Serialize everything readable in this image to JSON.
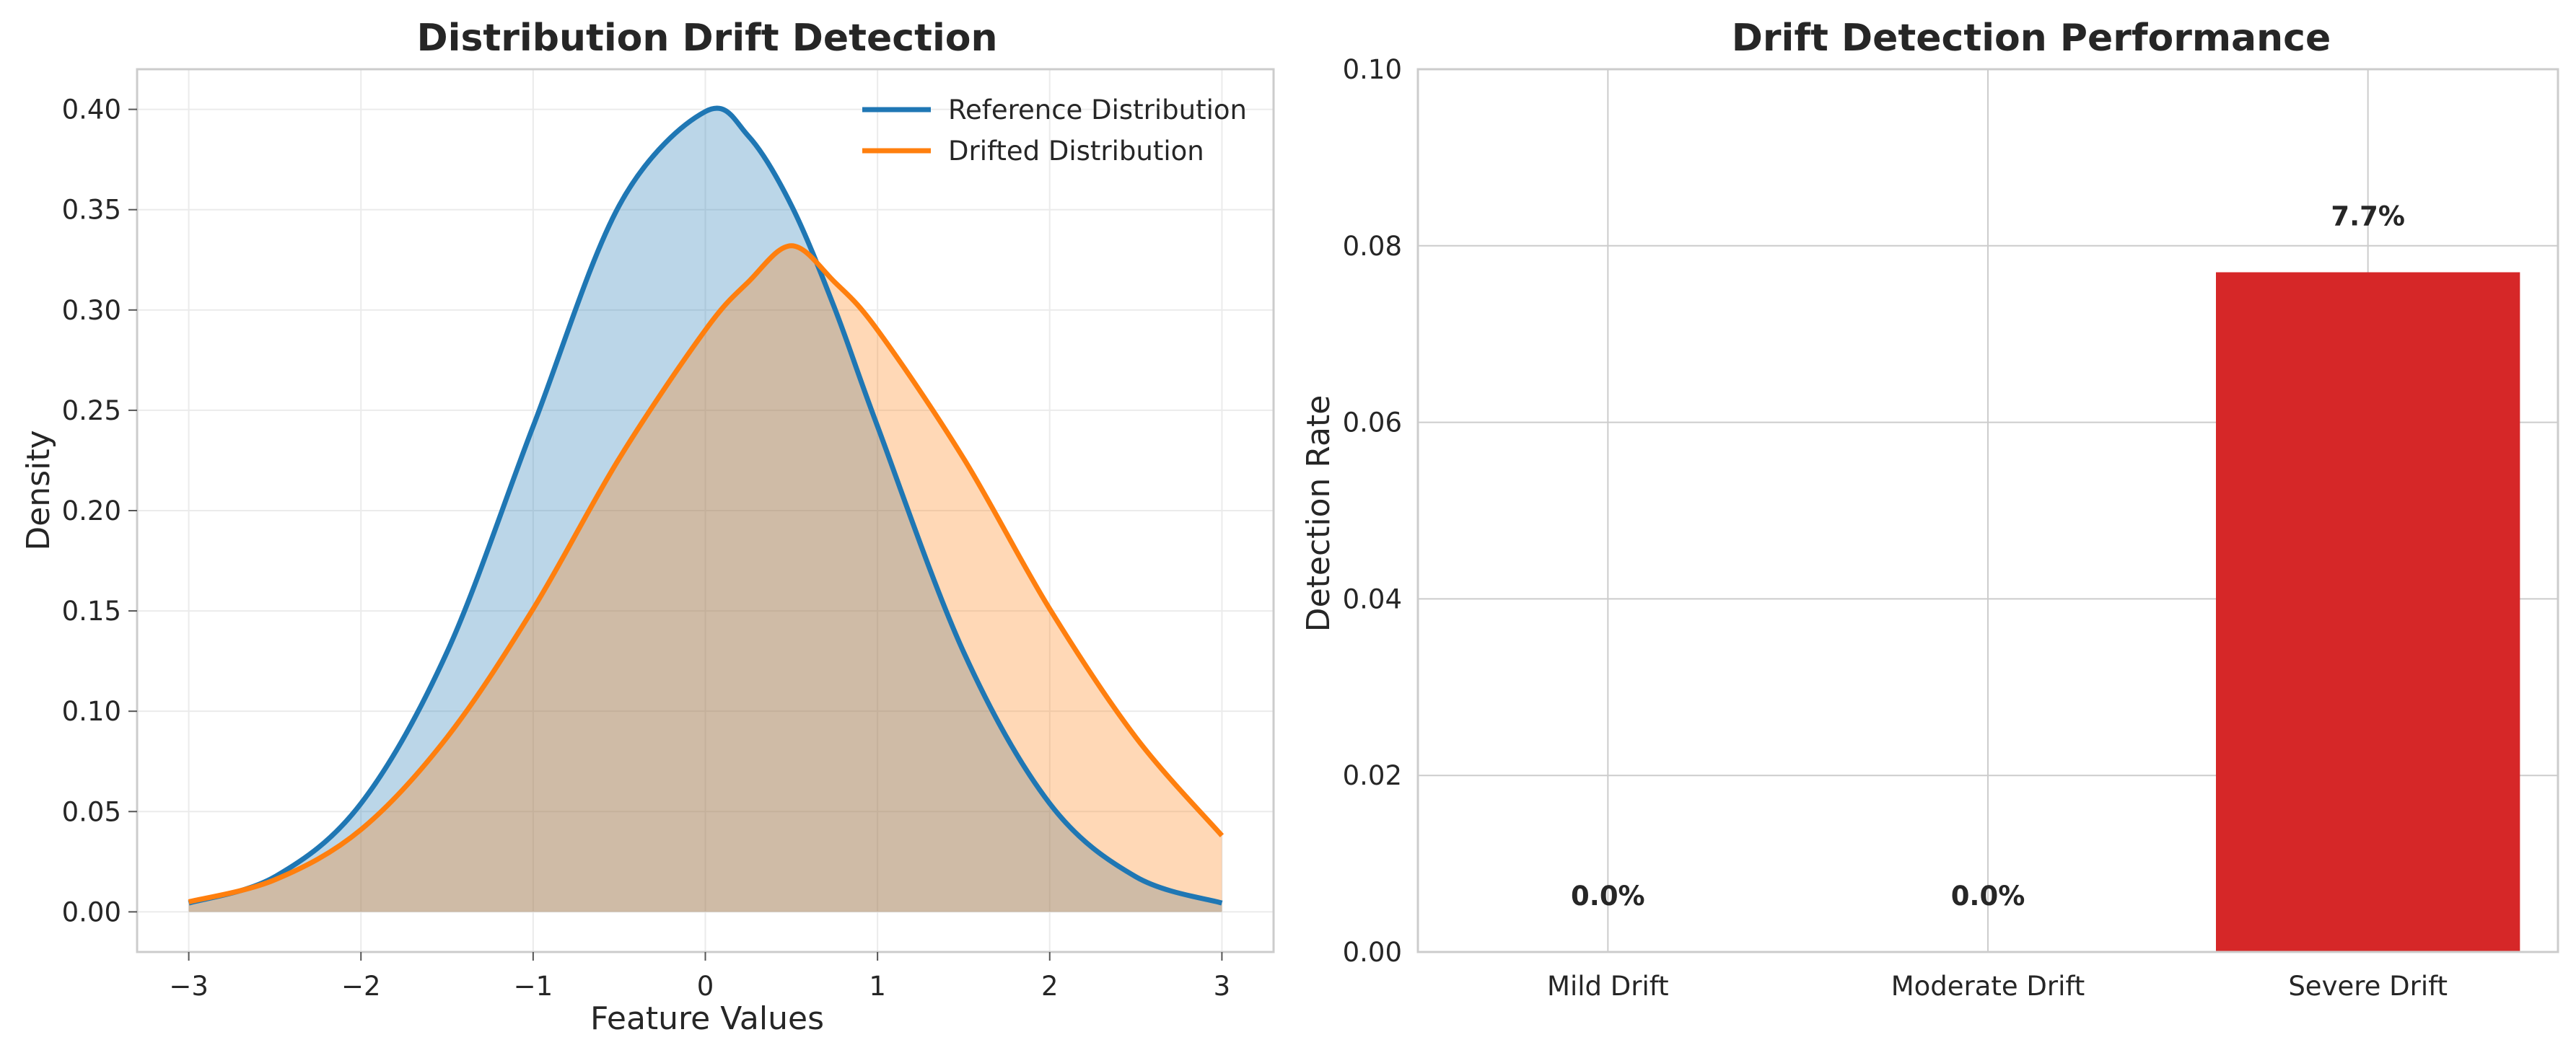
{
  "colors": {
    "reference": "#1f77b4",
    "drifted": "#ff7f0e",
    "bar_severe": "#d62728",
    "grid": "#ebebeb",
    "spine": "#cccccc"
  },
  "chart_data": [
    {
      "type": "line",
      "title": "Distribution Drift Detection",
      "xlabel": "Feature Values",
      "ylabel": "Density",
      "xlim": [
        -3.3,
        3.3
      ],
      "ylim": [
        -0.02,
        0.42
      ],
      "xticks": [
        -3,
        -2,
        -1,
        0,
        1,
        2,
        3
      ],
      "xtick_labels": [
        "−3",
        "−2",
        "−1",
        "0",
        "1",
        "2",
        "3"
      ],
      "yticks": [
        0.0,
        0.05,
        0.1,
        0.15,
        0.2,
        0.25,
        0.3,
        0.35,
        0.4
      ],
      "ytick_labels": [
        "0.00",
        "0.05",
        "0.10",
        "0.15",
        "0.20",
        "0.25",
        "0.30",
        "0.35",
        "0.40"
      ],
      "grid": true,
      "legend": "top-right",
      "x": [
        -3.0,
        -2.5,
        -2.0,
        -1.5,
        -1.0,
        -0.5,
        0.0,
        0.25,
        0.5,
        0.75,
        1.0,
        1.5,
        2.0,
        2.5,
        3.0
      ],
      "series": [
        {
          "name": "Reference Distribution",
          "color": "#1f77b4",
          "fill": true,
          "values": [
            0.0044,
            0.0175,
            0.054,
            0.1295,
            0.242,
            0.3521,
            0.3989,
            0.3867,
            0.3521,
            0.3011,
            0.242,
            0.1295,
            0.054,
            0.0175,
            0.0044
          ]
        },
        {
          "name": "Drifted Distribution",
          "color": "#ff7f0e",
          "fill": true,
          "values": [
            0.005,
            0.016,
            0.041,
            0.087,
            0.151,
            0.226,
            0.29,
            0.314,
            0.332,
            0.314,
            0.29,
            0.226,
            0.151,
            0.087,
            0.038
          ]
        }
      ]
    },
    {
      "type": "bar",
      "title": "Drift Detection Performance",
      "xlabel": "",
      "ylabel": "Detection Rate",
      "ylim": [
        0.0,
        0.1
      ],
      "yticks": [
        0.0,
        0.02,
        0.04,
        0.06,
        0.08,
        0.1
      ],
      "ytick_labels": [
        "0.00",
        "0.02",
        "0.04",
        "0.06",
        "0.08",
        "0.10"
      ],
      "categories": [
        "Mild Drift",
        "Moderate Drift",
        "Severe Drift"
      ],
      "values": [
        0.0,
        0.0,
        0.077
      ],
      "data_labels": [
        "0.0%",
        "0.0%",
        "7.7%"
      ],
      "colors": [
        "#2ca02c",
        "#ff7f0e",
        "#d62728"
      ],
      "grid": true
    }
  ]
}
